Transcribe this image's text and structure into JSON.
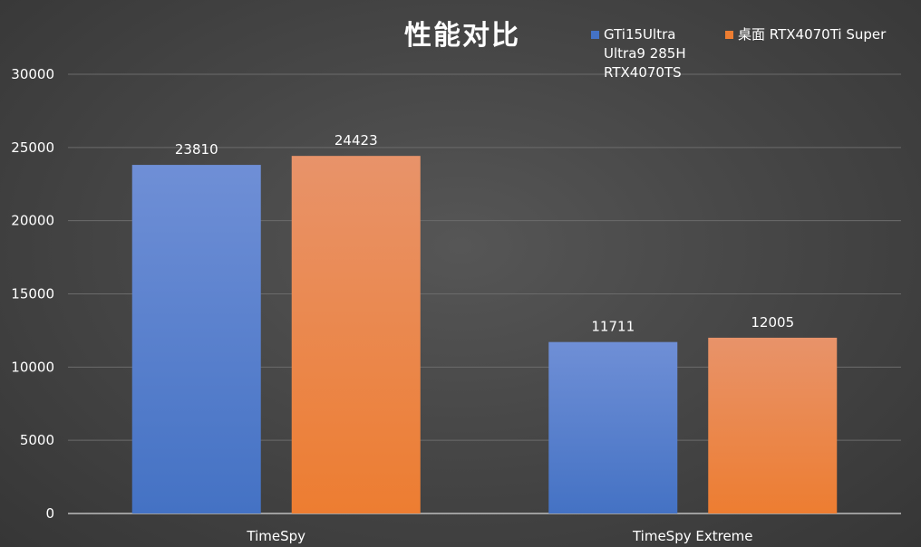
{
  "chart_data": {
    "type": "bar",
    "title": "性能对比",
    "categories": [
      "TimeSpy",
      "TimeSpy Extreme"
    ],
    "series": [
      {
        "name": "GTi15Ultra\nUltra9 285H\nRTX4070TS",
        "values": [
          23810,
          11711
        ],
        "color": "#4472c4",
        "color_light": "#6f8fd6"
      },
      {
        "name": "桌面 RTX4070Ti Super",
        "values": [
          24423,
          12005
        ],
        "color": "#ed7d31",
        "color_light": "#e8936a"
      }
    ],
    "y_ticks": [
      "0",
      "5000",
      "10000",
      "15000",
      "20000",
      "25000",
      "30000"
    ],
    "ylim": [
      0,
      30000
    ],
    "data_labels": [
      [
        "23810",
        "11711"
      ],
      [
        "24423",
        "12005"
      ]
    ],
    "grid": true,
    "legend_position": "top-right"
  }
}
